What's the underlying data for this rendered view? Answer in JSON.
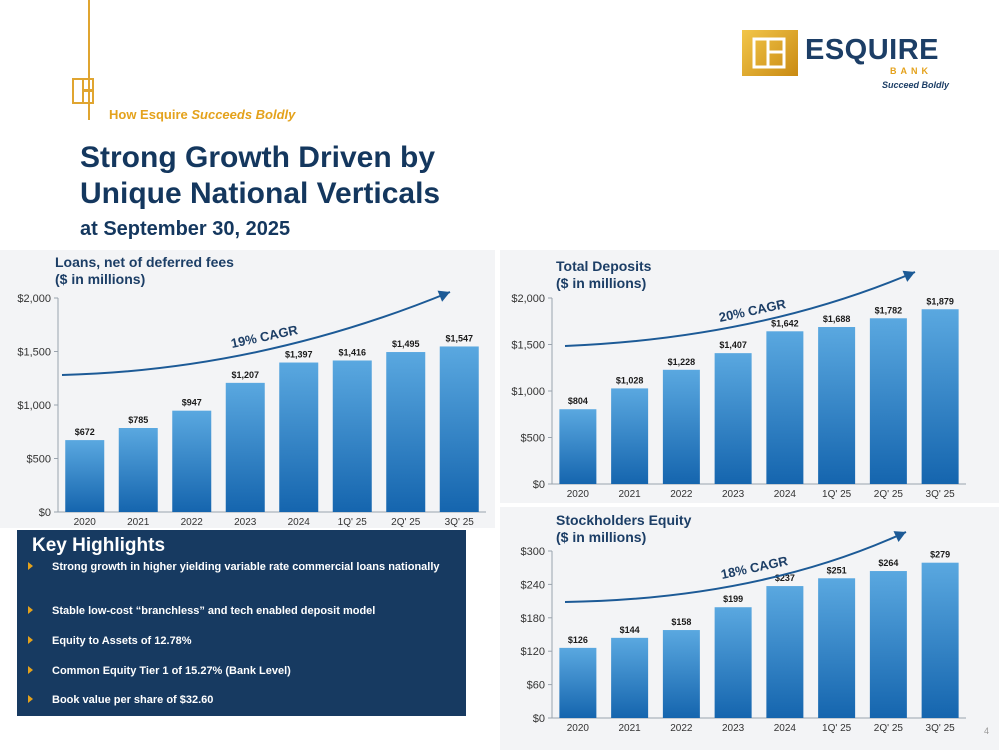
{
  "header": {
    "tag_prefix": "How Esquire ",
    "tag_emphasis": "Succeeds Boldly",
    "title_line1": "Strong Growth Driven by",
    "title_line2": "Unique National Verticals",
    "date": "at September 30, 2025"
  },
  "logo": {
    "name": "ESQUIRE",
    "bank": "BANK",
    "tagline": "Succeed Boldly"
  },
  "colors": {
    "navy": "#14375e",
    "gold": "#e4a21c",
    "bar_top": "#5aa8e0",
    "bar_bottom": "#1565ae",
    "arrow": "#1c5a96"
  },
  "chart_data": [
    {
      "type": "bar",
      "title": "Loans, net of deferred fees\n($ in millions)",
      "categories": [
        "2020",
        "2021",
        "2022",
        "2023",
        "2024",
        "1Q' 25",
        "2Q' 25",
        "3Q' 25"
      ],
      "values": [
        672,
        785,
        947,
        1207,
        1397,
        1416,
        1495,
        1547
      ],
      "value_labels": [
        "$672",
        "$785",
        "$947",
        "$1,207",
        "$1,397",
        "$1,416",
        "$1,495",
        "$1,547"
      ],
      "ylim": [
        0,
        2000
      ],
      "yticks": [
        0,
        500,
        1000,
        1500,
        2000
      ],
      "ytick_labels": [
        "$0",
        "$500",
        "$1,000",
        "$1,500",
        "$2,000"
      ],
      "cagr": "19% CAGR"
    },
    {
      "type": "bar",
      "title": "Total Deposits\n($ in millions)",
      "categories": [
        "2020",
        "2021",
        "2022",
        "2023",
        "2024",
        "1Q' 25",
        "2Q' 25",
        "3Q' 25"
      ],
      "values": [
        804,
        1028,
        1228,
        1407,
        1642,
        1688,
        1782,
        1879
      ],
      "value_labels": [
        "$804",
        "$1,028",
        "$1,228",
        "$1,407",
        "$1,642",
        "$1,688",
        "$1,782",
        "$1,879"
      ],
      "ylim": [
        0,
        2000
      ],
      "yticks": [
        0,
        500,
        1000,
        1500,
        2000
      ],
      "ytick_labels": [
        "$0",
        "$500",
        "$1,000",
        "$1,500",
        "$2,000"
      ],
      "cagr": "20% CAGR"
    },
    {
      "type": "bar",
      "title": "Stockholders Equity\n($ in millions)",
      "categories": [
        "2020",
        "2021",
        "2022",
        "2023",
        "2024",
        "1Q' 25",
        "2Q' 25",
        "3Q' 25"
      ],
      "values": [
        126,
        144,
        158,
        199,
        237,
        251,
        264,
        279
      ],
      "value_labels": [
        "$126",
        "$144",
        "$158",
        "$199",
        "$237",
        "$251",
        "$264",
        "$279"
      ],
      "ylim": [
        0,
        300
      ],
      "yticks": [
        0,
        60,
        120,
        180,
        240,
        300
      ],
      "ytick_labels": [
        "$0",
        "$60",
        "$120",
        "$180",
        "$240",
        "$300"
      ],
      "cagr": "18% CAGR"
    }
  ],
  "highlights": {
    "title": "Key Highlights",
    "items": [
      "Strong growth in higher yielding variable rate commercial loans nationally",
      "Stable low-cost “branchless” and tech enabled deposit model",
      "Equity to Assets of 12.78%",
      "Common Equity Tier 1 of 15.27% (Bank Level)",
      "Book value per share of $32.60"
    ]
  },
  "page_number": "4"
}
